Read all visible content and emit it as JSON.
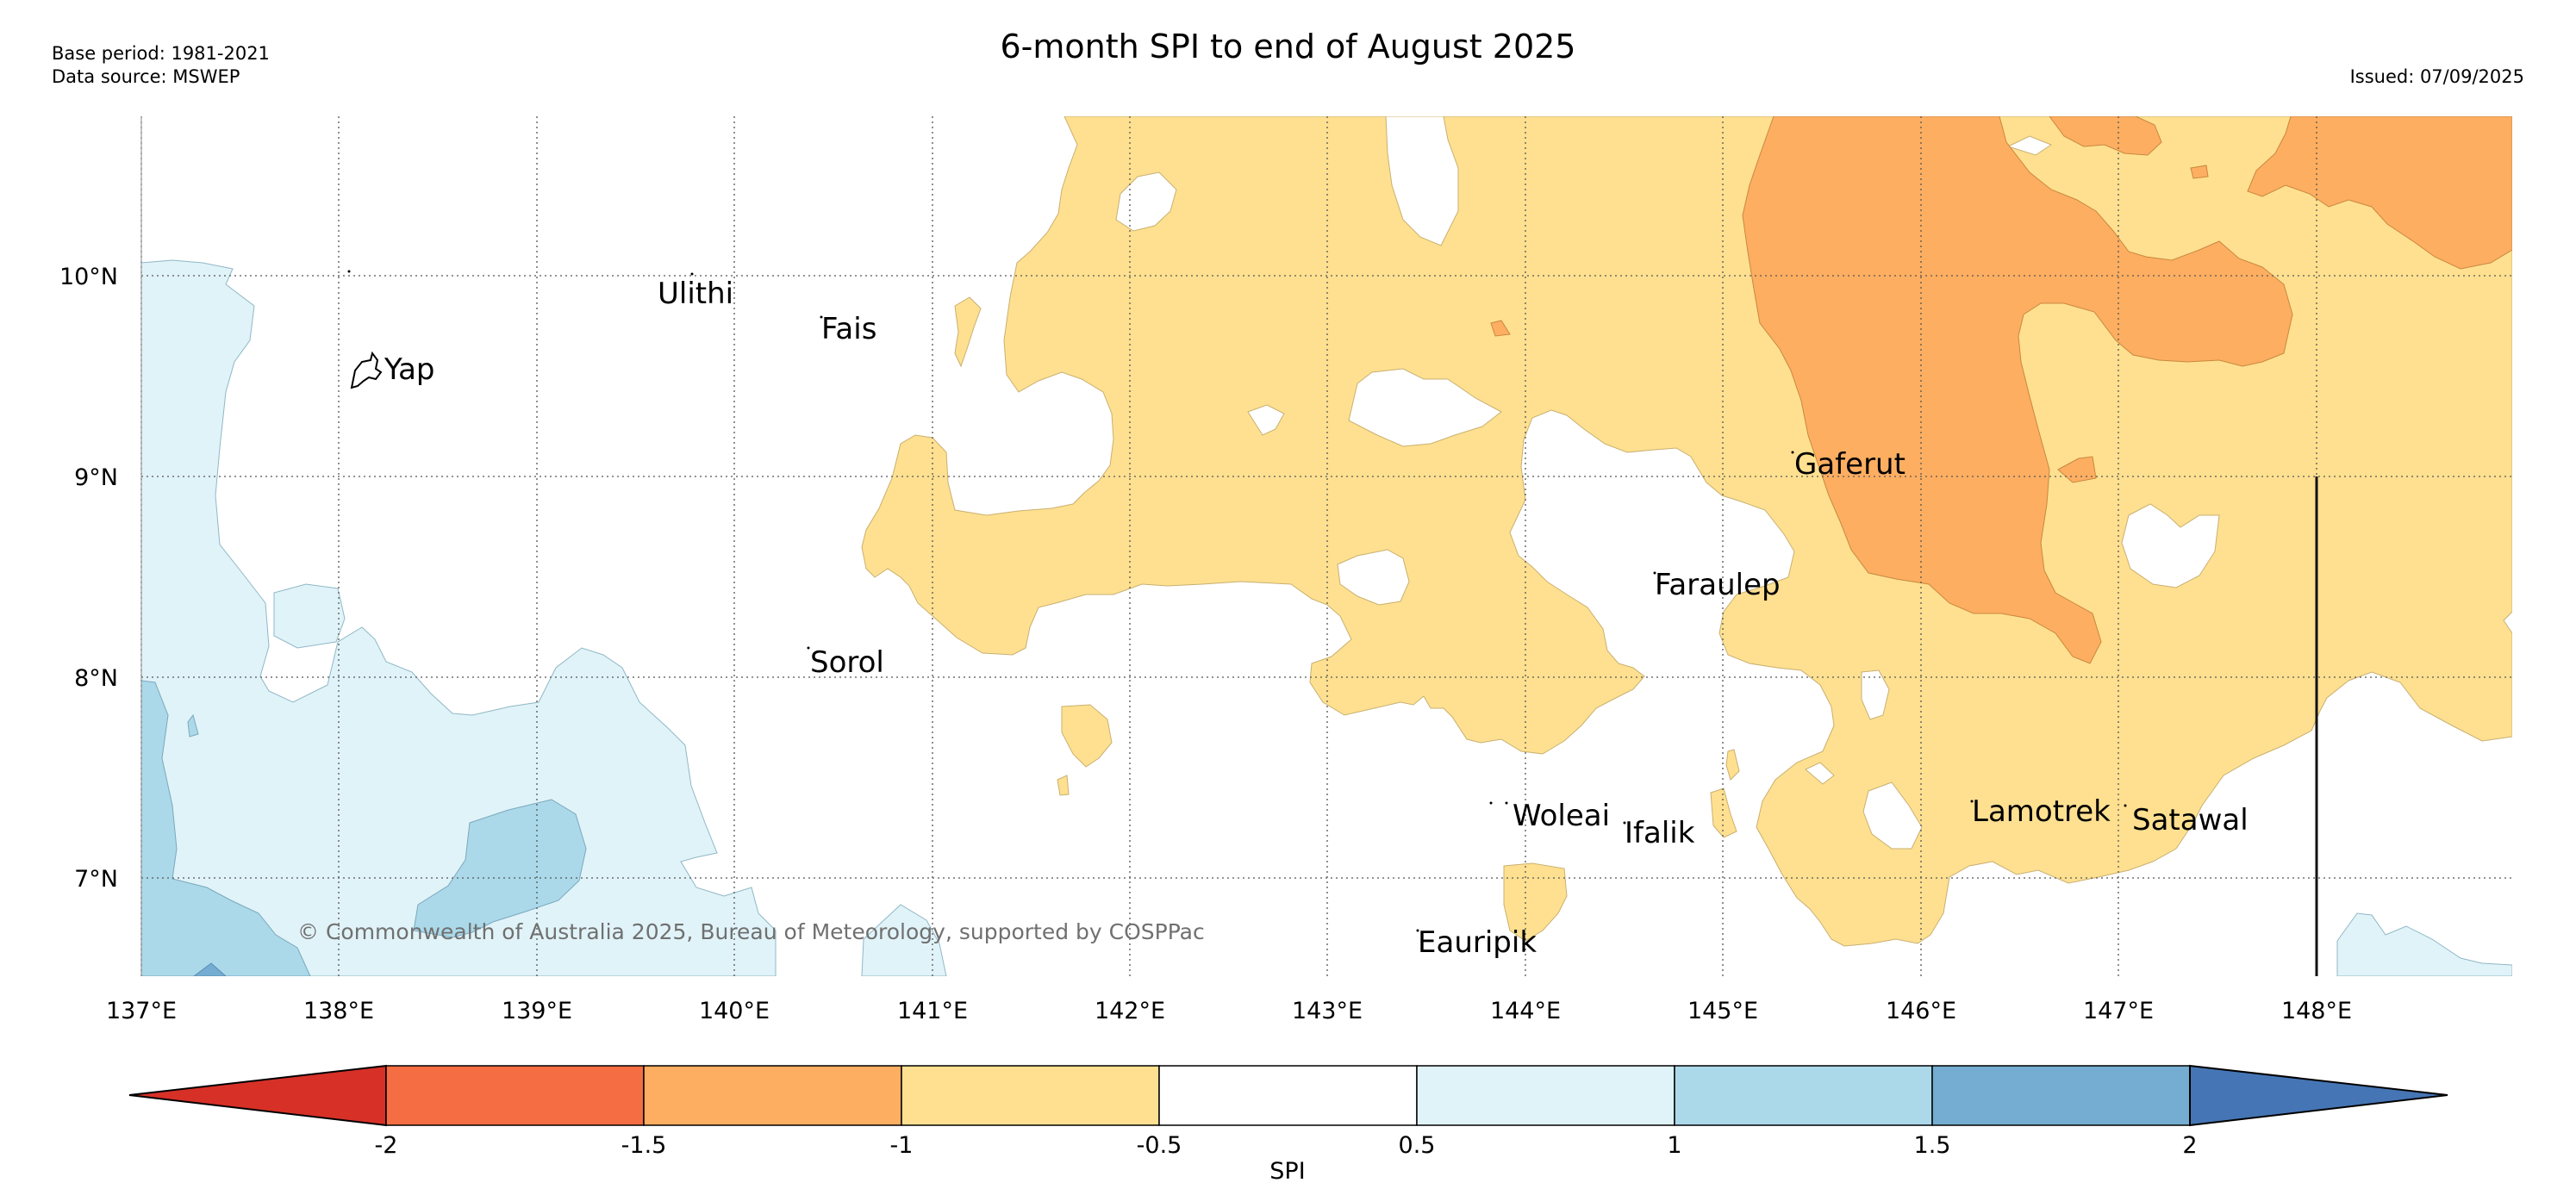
{
  "title": "6-month SPI to end of August 2025",
  "meta": {
    "base_period": "Base period: 1981-2021",
    "data_source": "Data source: MSWEP",
    "issued": "Issued: 07/09/2025"
  },
  "copyright": "© Commonwealth of Australia 2025, Bureau of Meteorology, supported by COSPPac",
  "axes": {
    "lat_labels": [
      "10°N",
      "9°N",
      "8°N",
      "7°N"
    ],
    "lon_labels": [
      "137°E",
      "138°E",
      "139°E",
      "140°E",
      "141°E",
      "142°E",
      "143°E",
      "144°E",
      "145°E",
      "146°E",
      "147°E",
      "148°E"
    ]
  },
  "places": [
    {
      "name": "Ulithi"
    },
    {
      "name": "Fais"
    },
    {
      "name": "Yap"
    },
    {
      "name": "Gaferut"
    },
    {
      "name": "Faraulep"
    },
    {
      "name": "Sorol"
    },
    {
      "name": "Woleai"
    },
    {
      "name": "Ifalik"
    },
    {
      "name": "Lamotrek"
    },
    {
      "name": "Satawal"
    },
    {
      "name": "Eauripik"
    }
  ],
  "colorbar": {
    "label": "SPI",
    "ticks": [
      "-2",
      "-1.5",
      "-1",
      "-0.5",
      "0.5",
      "1",
      "1.5",
      "2"
    ],
    "colors": {
      "below_-2": "#d73027",
      "-2_-1.5": "#f46d43",
      "-1.5_-1": "#fdae61",
      "-1_-0.5": "#fee090",
      "-0.5_0.5": "#ffffff",
      "0.5_1": "#e0f3f8",
      "1_1.5": "#abd9e9",
      "1.5_2": "#74add1",
      "above_2": "#4575b4"
    }
  }
}
